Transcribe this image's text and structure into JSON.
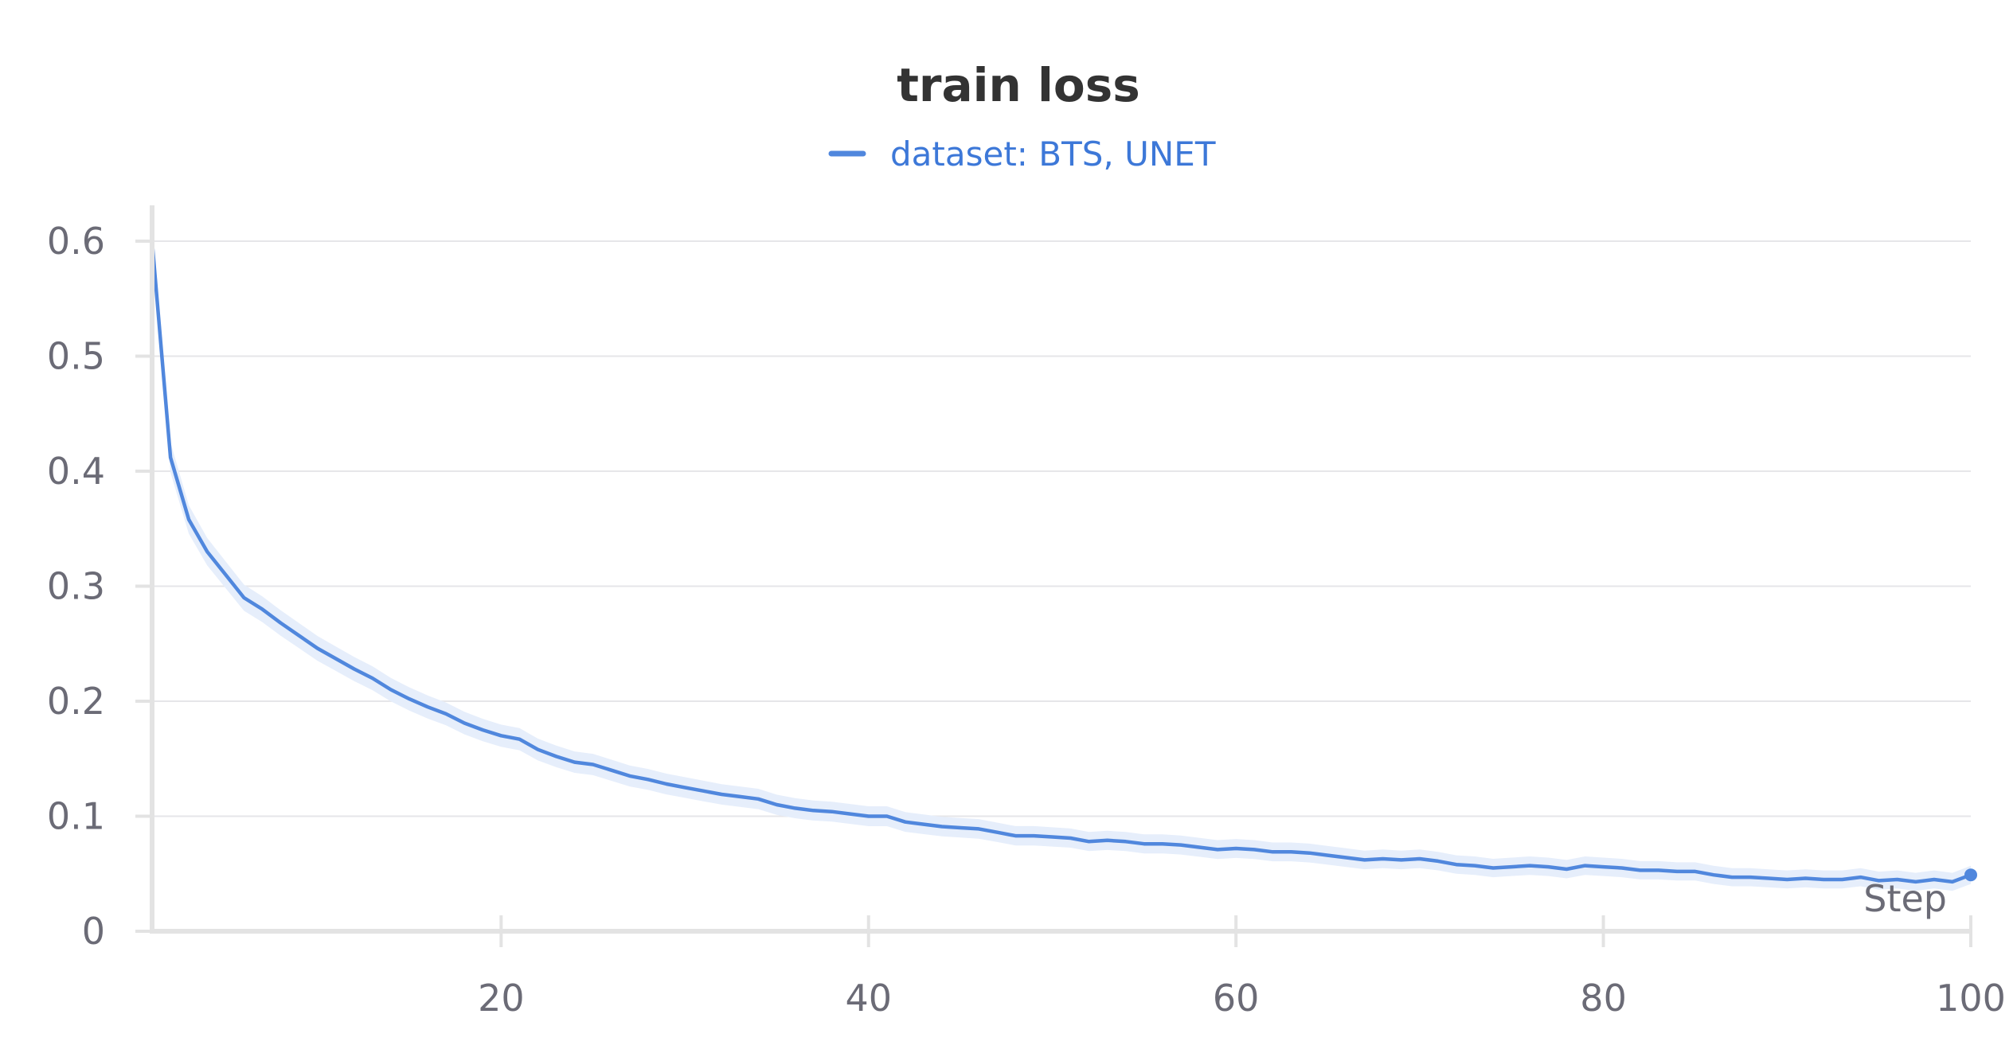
{
  "chart_data": {
    "type": "line",
    "title": "train loss",
    "xlabel": "Step",
    "ylabel": "",
    "xlim": [
      1,
      100
    ],
    "ylim": [
      0,
      0.62
    ],
    "x_ticks": [
      20,
      40,
      60,
      80,
      100
    ],
    "x_tick_labels": [
      "20",
      "40",
      "60",
      "80",
      "100"
    ],
    "y_ticks": [
      0,
      0.1,
      0.2,
      0.3,
      0.4,
      0.5,
      0.6
    ],
    "y_tick_labels": [
      "0",
      "0.1",
      "0.2",
      "0.3",
      "0.4",
      "0.5",
      "0.6"
    ],
    "grid": true,
    "legend_position": "top-center",
    "band_spread": 0.012,
    "series": [
      {
        "name": "dataset: BTS, UNET",
        "color": "#5087dd",
        "legend_text_color": "#3d78d8",
        "band_color": "#e6eefb",
        "x": [
          1,
          2,
          3,
          4,
          5,
          6,
          7,
          8,
          9,
          10,
          11,
          12,
          13,
          14,
          15,
          16,
          17,
          18,
          19,
          20,
          21,
          22,
          23,
          24,
          25,
          26,
          27,
          28,
          29,
          30,
          31,
          32,
          33,
          34,
          35,
          36,
          37,
          38,
          39,
          40,
          41,
          42,
          43,
          44,
          45,
          46,
          47,
          48,
          49,
          50,
          51,
          52,
          53,
          54,
          55,
          56,
          57,
          58,
          59,
          60,
          61,
          62,
          63,
          64,
          65,
          66,
          67,
          68,
          69,
          70,
          71,
          72,
          73,
          74,
          75,
          76,
          77,
          78,
          79,
          80,
          81,
          82,
          83,
          84,
          85,
          86,
          87,
          88,
          89,
          90,
          91,
          92,
          93,
          94,
          95,
          96,
          97,
          98,
          99,
          100
        ],
        "values": [
          0.6,
          0.412,
          0.358,
          0.33,
          0.31,
          0.29,
          0.28,
          0.268,
          0.257,
          0.246,
          0.237,
          0.228,
          0.22,
          0.21,
          0.202,
          0.195,
          0.189,
          0.181,
          0.175,
          0.17,
          0.167,
          0.158,
          0.152,
          0.147,
          0.145,
          0.14,
          0.135,
          0.132,
          0.128,
          0.125,
          0.122,
          0.119,
          0.117,
          0.115,
          0.11,
          0.107,
          0.105,
          0.104,
          0.102,
          0.1,
          0.1,
          0.095,
          0.093,
          0.091,
          0.09,
          0.089,
          0.086,
          0.083,
          0.083,
          0.082,
          0.081,
          0.078,
          0.079,
          0.078,
          0.076,
          0.076,
          0.075,
          0.073,
          0.071,
          0.072,
          0.071,
          0.069,
          0.069,
          0.068,
          0.066,
          0.064,
          0.062,
          0.063,
          0.062,
          0.063,
          0.061,
          0.058,
          0.057,
          0.055,
          0.056,
          0.057,
          0.056,
          0.054,
          0.057,
          0.056,
          0.055,
          0.053,
          0.053,
          0.052,
          0.052,
          0.049,
          0.047,
          0.047,
          0.046,
          0.045,
          0.046,
          0.045,
          0.045,
          0.047,
          0.044,
          0.045,
          0.043,
          0.045,
          0.043,
          0.049
        ]
      }
    ]
  }
}
